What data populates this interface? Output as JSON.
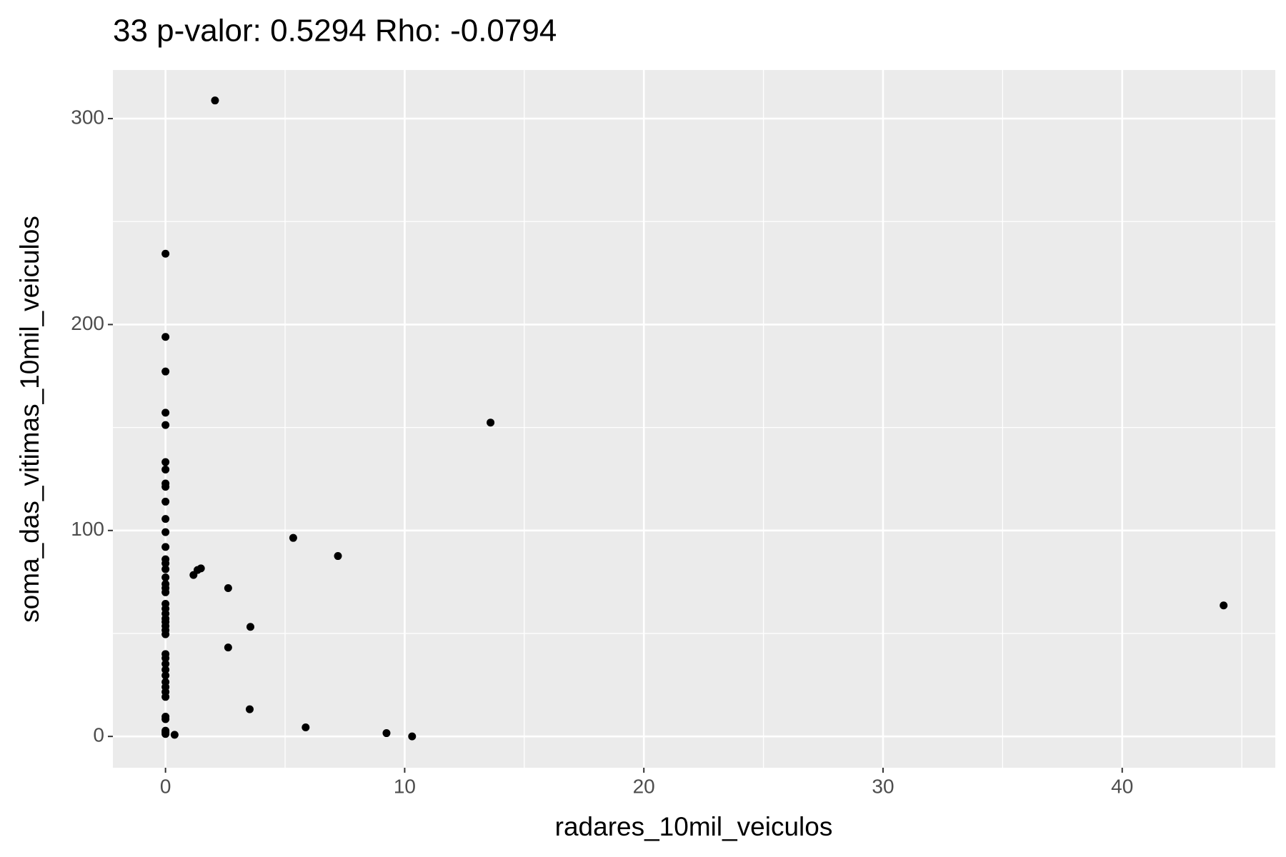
{
  "chart_data": {
    "type": "scatter",
    "title": "33 p-valor: 0.5294 Rho: -0.0794",
    "x_label": "radares_10mil_veiculos",
    "y_label": "soma_das_vitimas_10mil_veiculos",
    "x": [
      0,
      0,
      0,
      0,
      0,
      0,
      0,
      0,
      0,
      0,
      0,
      0,
      0,
      0,
      0,
      0,
      0,
      0,
      0,
      0,
      0,
      0,
      0,
      0,
      0,
      0,
      0,
      0,
      0,
      0,
      0,
      0,
      0,
      0,
      0,
      0,
      0,
      0,
      0,
      0,
      0,
      0,
      2.07,
      13.59,
      5.34,
      7.21,
      1.17,
      1.34,
      1.48,
      2.62,
      3.55,
      2.62,
      3.52,
      5.86,
      9.24,
      10.31,
      0.38,
      44.24
    ],
    "values": [
      234.4,
      194,
      177.2,
      157.2,
      151.2,
      133.2,
      129.6,
      122.8,
      121.2,
      114,
      105.6,
      99.2,
      92,
      86,
      84,
      81.2,
      77.2,
      74,
      72,
      70,
      64.4,
      62,
      59.6,
      57.2,
      55.6,
      53.6,
      51.6,
      49.6,
      40,
      38,
      35.2,
      32.4,
      29.6,
      26.4,
      24,
      21.6,
      19.2,
      9.6,
      8.4,
      2.8,
      1.2,
      2,
      308.8,
      152.4,
      96.4,
      87.6,
      78.4,
      80.8,
      81.6,
      72,
      53.2,
      43.2,
      13.2,
      4.4,
      1.6,
      0,
      0.8,
      63.6
    ],
    "color": "#000000",
    "xlim": [
      -2.2,
      46.4
    ],
    "ylim": [
      -15.2,
      323.6
    ],
    "xticks": [
      0,
      10,
      20,
      30,
      40
    ],
    "yticks": [
      0,
      100,
      200,
      300
    ],
    "x_minor_grid": [
      5,
      15,
      25,
      35,
      45
    ],
    "y_minor_grid": [
      50,
      150,
      250
    ],
    "grid": true
  }
}
